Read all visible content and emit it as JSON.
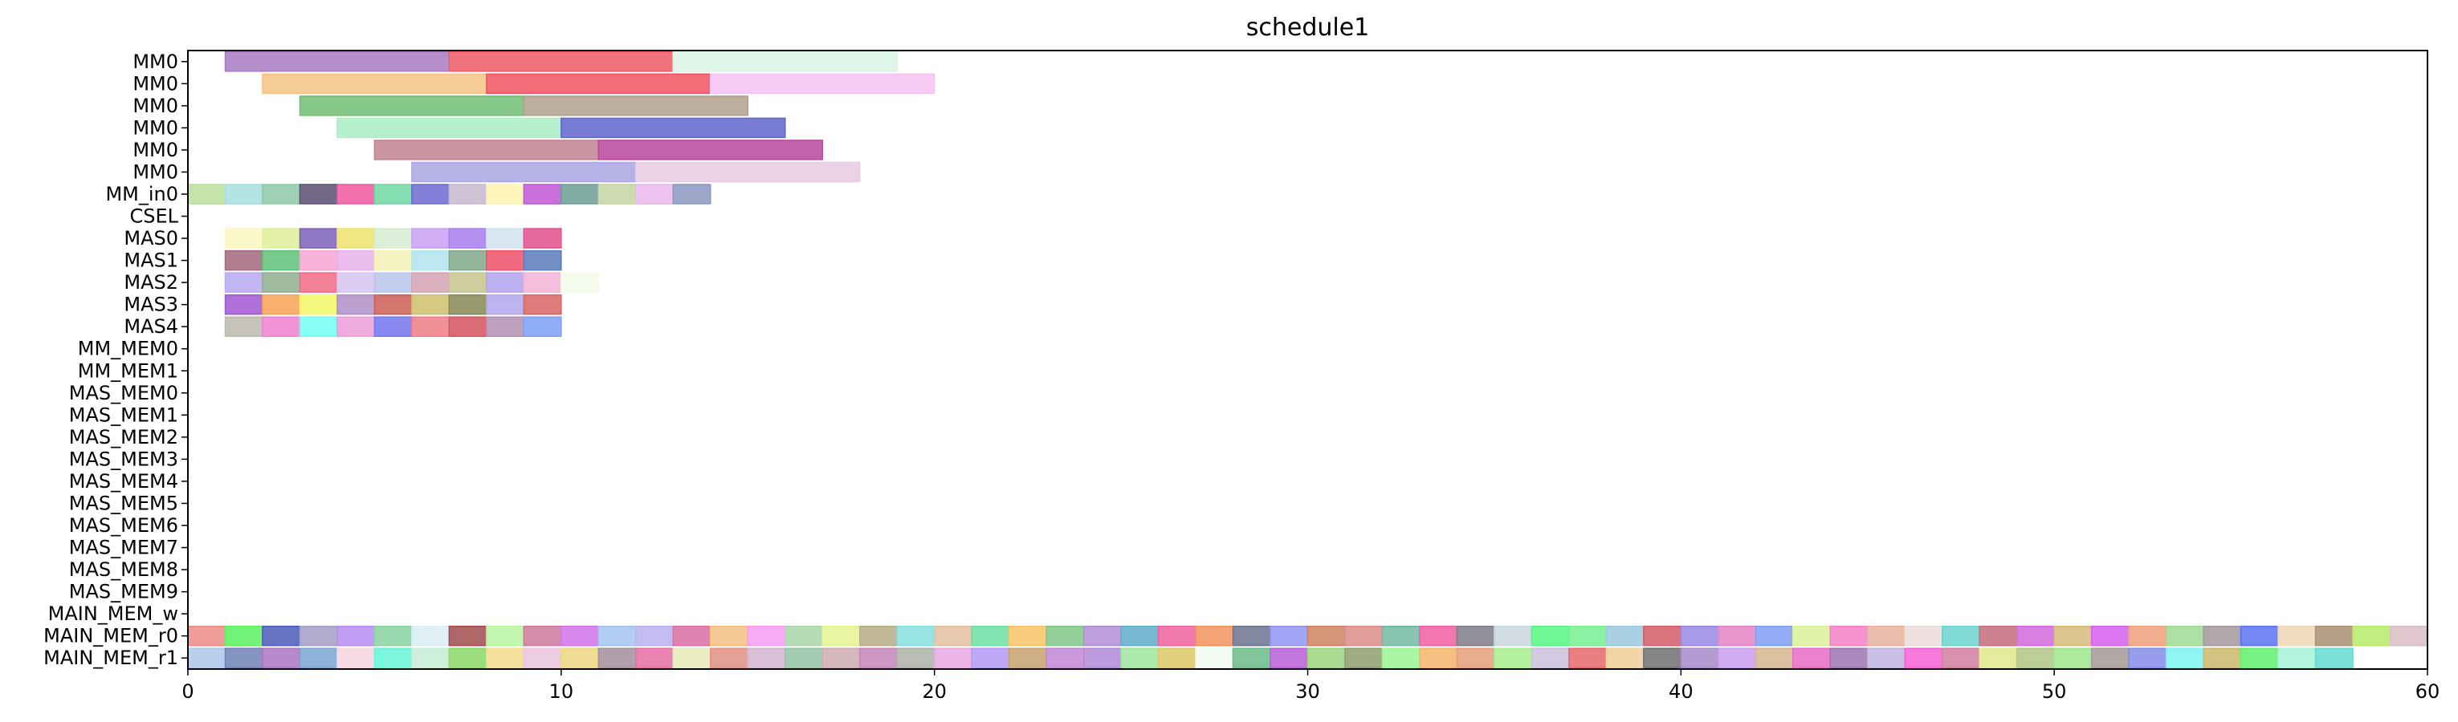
{
  "chart_data": {
    "type": "gantt",
    "title": "schedule1",
    "xlim": [
      0,
      60
    ],
    "x_ticks": [
      0,
      10,
      20,
      30,
      40,
      50,
      60
    ],
    "rows": [
      "MM0",
      "MM0",
      "MM0",
      "MM0",
      "MM0",
      "MM0",
      "MM_in0",
      "CSEL",
      "MAS0",
      "MAS1",
      "MAS2",
      "MAS3",
      "MAS4",
      "MM_MEM0",
      "MM_MEM1",
      "MAS_MEM0",
      "MAS_MEM1",
      "MAS_MEM2",
      "MAS_MEM3",
      "MAS_MEM4",
      "MAS_MEM5",
      "MAS_MEM6",
      "MAS_MEM7",
      "MAS_MEM8",
      "MAS_MEM9",
      "MAIN_MEM_w",
      "MAIN_MEM_r0",
      "MAIN_MEM_r1"
    ],
    "bars": [
      {
        "row": 0,
        "start": 1,
        "end": 7,
        "color": "#a77bbf"
      },
      {
        "row": 0,
        "start": 7,
        "end": 13,
        "color": "#ef5a66"
      },
      {
        "row": 0,
        "start": 13,
        "end": 19,
        "color": "#d8f5e3"
      },
      {
        "row": 1,
        "start": 2,
        "end": 8,
        "color": "#f3c284"
      },
      {
        "row": 1,
        "start": 8,
        "end": 14,
        "color": "#f0545f"
      },
      {
        "row": 1,
        "start": 14,
        "end": 20,
        "color": "#f6c2f3"
      },
      {
        "row": 2,
        "start": 3,
        "end": 9,
        "color": "#70be74"
      },
      {
        "row": 2,
        "start": 9,
        "end": 15,
        "color": "#b2a08d"
      },
      {
        "row": 3,
        "start": 4,
        "end": 10,
        "color": "#a8efc3"
      },
      {
        "row": 3,
        "start": 10,
        "end": 16,
        "color": "#5f66ce"
      },
      {
        "row": 4,
        "start": 5,
        "end": 11,
        "color": "#c0838f"
      },
      {
        "row": 4,
        "start": 11,
        "end": 17,
        "color": "#b8479d"
      },
      {
        "row": 5,
        "start": 6,
        "end": 12,
        "color": "#aba6e2"
      },
      {
        "row": 5,
        "start": 12,
        "end": 18,
        "color": "#e6cbe2"
      },
      {
        "row": 6,
        "start": 0,
        "end": 1,
        "color": "#b8e09b"
      },
      {
        "row": 6,
        "start": 1,
        "end": 2,
        "color": "#a6dede"
      },
      {
        "row": 6,
        "start": 2,
        "end": 3,
        "color": "#8dc9a6"
      },
      {
        "row": 6,
        "start": 3,
        "end": 4,
        "color": "#5a4e73"
      },
      {
        "row": 6,
        "start": 4,
        "end": 5,
        "color": "#ef58a0"
      },
      {
        "row": 6,
        "start": 5,
        "end": 6,
        "color": "#6ed8a3"
      },
      {
        "row": 6,
        "start": 6,
        "end": 7,
        "color": "#6d6ad0"
      },
      {
        "row": 6,
        "start": 7,
        "end": 8,
        "color": "#c5b7d0"
      },
      {
        "row": 6,
        "start": 8,
        "end": 9,
        "color": "#fff3b0"
      },
      {
        "row": 6,
        "start": 9,
        "end": 10,
        "color": "#c156d6"
      },
      {
        "row": 6,
        "start": 10,
        "end": 11,
        "color": "#6c9e95"
      },
      {
        "row": 6,
        "start": 11,
        "end": 12,
        "color": "#c6d4a2"
      },
      {
        "row": 6,
        "start": 12,
        "end": 13,
        "color": "#eab7ec"
      },
      {
        "row": 6,
        "start": 13,
        "end": 14,
        "color": "#8a98c2"
      },
      {
        "row": 8,
        "start": 1,
        "end": 2,
        "color": "#fdf7c0"
      },
      {
        "row": 8,
        "start": 2,
        "end": 3,
        "color": "#dff09a"
      },
      {
        "row": 8,
        "start": 3,
        "end": 4,
        "color": "#7d5fb8"
      },
      {
        "row": 8,
        "start": 4,
        "end": 5,
        "color": "#f0e36a"
      },
      {
        "row": 8,
        "start": 5,
        "end": 6,
        "color": "#d8ecd0"
      },
      {
        "row": 8,
        "start": 6,
        "end": 7,
        "color": "#c89ff3"
      },
      {
        "row": 8,
        "start": 7,
        "end": 8,
        "color": "#a87cf0"
      },
      {
        "row": 8,
        "start": 8,
        "end": 9,
        "color": "#cfe3ee"
      },
      {
        "row": 8,
        "start": 9,
        "end": 10,
        "color": "#e2508a"
      },
      {
        "row": 9,
        "start": 1,
        "end": 2,
        "color": "#a0697c"
      },
      {
        "row": 9,
        "start": 2,
        "end": 3,
        "color": "#5fbf78"
      },
      {
        "row": 9,
        "start": 3,
        "end": 4,
        "color": "#f7a6d5"
      },
      {
        "row": 9,
        "start": 4,
        "end": 5,
        "color": "#e7b2ea"
      },
      {
        "row": 9,
        "start": 5,
        "end": 6,
        "color": "#f4efb5"
      },
      {
        "row": 9,
        "start": 6,
        "end": 7,
        "color": "#b3e4ee"
      },
      {
        "row": 9,
        "start": 7,
        "end": 8,
        "color": "#7fa88a"
      },
      {
        "row": 9,
        "start": 8,
        "end": 9,
        "color": "#f0506a"
      },
      {
        "row": 9,
        "start": 9,
        "end": 10,
        "color": "#5a7cba"
      },
      {
        "row": 10,
        "start": 1,
        "end": 2,
        "color": "#b9a9f2"
      },
      {
        "row": 10,
        "start": 2,
        "end": 3,
        "color": "#8fae8f"
      },
      {
        "row": 10,
        "start": 3,
        "end": 4,
        "color": "#f16a87"
      },
      {
        "row": 10,
        "start": 4,
        "end": 5,
        "color": "#d8c4f1"
      },
      {
        "row": 10,
        "start": 5,
        "end": 6,
        "color": "#b7c6ea"
      },
      {
        "row": 10,
        "start": 6,
        "end": 7,
        "color": "#d5a3b4"
      },
      {
        "row": 10,
        "start": 7,
        "end": 8,
        "color": "#c5c48c"
      },
      {
        "row": 10,
        "start": 8,
        "end": 9,
        "color": "#b2a3ee"
      },
      {
        "row": 10,
        "start": 9,
        "end": 10,
        "color": "#f4b4d8"
      },
      {
        "row": 10,
        "start": 10,
        "end": 11,
        "color": "#f3fae9"
      },
      {
        "row": 11,
        "start": 1,
        "end": 2,
        "color": "#9f58d0"
      },
      {
        "row": 11,
        "start": 2,
        "end": 3,
        "color": "#f6a456"
      },
      {
        "row": 11,
        "start": 3,
        "end": 4,
        "color": "#f5f766"
      },
      {
        "row": 11,
        "start": 4,
        "end": 5,
        "color": "#b08fc8"
      },
      {
        "row": 11,
        "start": 5,
        "end": 6,
        "color": "#cc5d55"
      },
      {
        "row": 11,
        "start": 6,
        "end": 7,
        "color": "#cfc06e"
      },
      {
        "row": 11,
        "start": 7,
        "end": 8,
        "color": "#858a55"
      },
      {
        "row": 11,
        "start": 8,
        "end": 9,
        "color": "#b4a7f0"
      },
      {
        "row": 11,
        "start": 9,
        "end": 10,
        "color": "#d86464"
      },
      {
        "row": 12,
        "start": 1,
        "end": 2,
        "color": "#bcb8ad"
      },
      {
        "row": 12,
        "start": 2,
        "end": 3,
        "color": "#f27fd0"
      },
      {
        "row": 12,
        "start": 3,
        "end": 4,
        "color": "#73fdf2"
      },
      {
        "row": 12,
        "start": 4,
        "end": 5,
        "color": "#ec9fd9"
      },
      {
        "row": 12,
        "start": 5,
        "end": 6,
        "color": "#7475ef"
      },
      {
        "row": 12,
        "start": 6,
        "end": 7,
        "color": "#f07c88"
      },
      {
        "row": 12,
        "start": 7,
        "end": 8,
        "color": "#d4525f"
      },
      {
        "row": 12,
        "start": 8,
        "end": 9,
        "color": "#b291b4"
      },
      {
        "row": 12,
        "start": 9,
        "end": 10,
        "color": "#7e9ff3"
      }
    ],
    "main_mem_r0_colors": [
      "#ef8a88",
      "#5cf25e",
      "#4c5ab8",
      "#a59fc6",
      "#b68cf4",
      "#8ad3a1",
      "#dcecf4",
      "#a14c4c",
      "#b8f4a0",
      "#cc7a9a",
      "#d074e8",
      "#a3c4ee",
      "#b8b2f0",
      "#dc6da2",
      "#f6c082",
      "#f49cf2",
      "#a9d6aa",
      "#e4f491",
      "#b7ad87",
      "#86dede",
      "#e2bfa0",
      "#6ee0a5",
      "#f6c466",
      "#82c888",
      "#b28fd5",
      "#5fadc6",
      "#f063a0",
      "#f1935d",
      "#6c7390",
      "#9295f2",
      "#cc8261",
      "#dd8c8a",
      "#72b9a2",
      "#ef5fa0",
      "#7e7d86",
      "#c8d6dd",
      "#56f583",
      "#78f091",
      "#9ac9dd",
      "#d45d6a",
      "#9a87e5",
      "#e583c6",
      "#7f9ff2",
      "#dcf09c",
      "#f480c3",
      "#e6b09e",
      "#eddcdc",
      "#6bd4ce",
      "#c46d7b",
      "#d269dc",
      "#d6bb7a",
      "#d65ff0",
      "#f0a07a",
      "#9ddc93",
      "#a5989d",
      "#5a73f0",
      "#f0d6b6",
      "#a89072",
      "#b5ec68",
      "#d9bdc4"
    ],
    "main_mem_r1_colors": [
      "#abc7ea",
      "#6f83b4",
      "#ad74c6",
      "#79a6d1",
      "#f7d6e0",
      "#66f5d8",
      "#c6ecd4",
      "#8bd868",
      "#f6dc8d",
      "#e8c6de",
      "#ecd77f",
      "#a58e9e",
      "#e66da5",
      "#e6eab8",
      "#e29184",
      "#d1b6cf",
      "#93c4a4",
      "#cdabb0",
      "#c786b9",
      "#aeb1a6",
      "#e8a8e4",
      "#b49af4",
      "#c7a26e",
      "#c387d6",
      "#b08ad8",
      "#9ee59d",
      "#dcc867",
      "#f0fbf0",
      "#6dbb8a",
      "#b85ed8",
      "#9ad67f",
      "#8e9d6e",
      "#9af594",
      "#f4b66a",
      "#e49e7a",
      "#a8f08d",
      "#cbbfda",
      "#e46a6c",
      "#f1cd97",
      "#726f73",
      "#a78bc8",
      "#ca9cf0",
      "#d4b68e",
      "#e76cc6",
      "#9d74b0",
      "#bfb4e2",
      "#f760d5",
      "#d17fa0",
      "#e0e98c",
      "#b1c686",
      "#9fe68d",
      "#a59a96",
      "#8789e8",
      "#7bf4f2",
      "#cab86c",
      "#62f06e",
      "#a4f3d7",
      "#63dbd2"
    ]
  }
}
